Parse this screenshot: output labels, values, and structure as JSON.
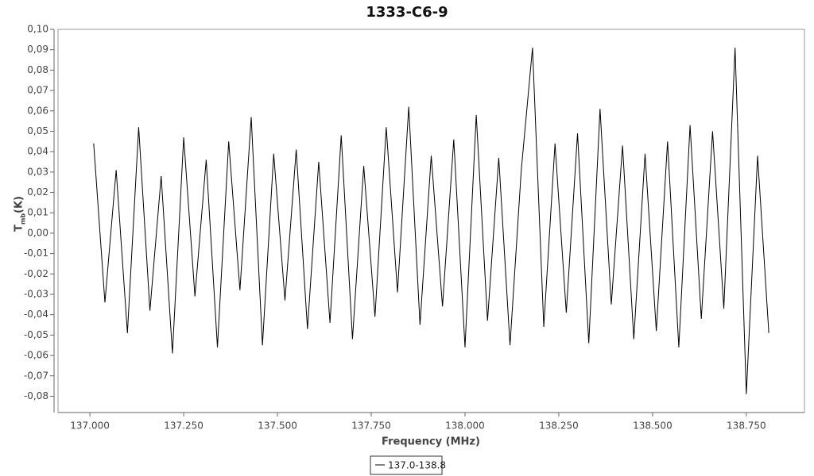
{
  "chart_data": {
    "type": "line",
    "title": "1333-C6-9",
    "x_label": "Frequency (MHz)",
    "y_label": [
      "T",
      "mb",
      "(K)"
    ],
    "x": [
      137.01,
      137.04,
      137.07,
      137.1,
      137.13,
      137.16,
      137.19,
      137.22,
      137.25,
      137.28,
      137.31,
      137.34,
      137.37,
      137.4,
      137.43,
      137.46,
      137.49,
      137.52,
      137.55,
      137.58,
      137.61,
      137.64,
      137.67,
      137.7,
      137.73,
      137.76,
      137.79,
      137.82,
      137.85,
      137.88,
      137.91,
      137.94,
      137.97,
      138.0,
      138.03,
      138.06,
      138.09,
      138.12,
      138.15,
      138.18,
      138.21,
      138.24,
      138.27,
      138.3,
      138.33,
      138.36,
      138.39,
      138.42,
      138.45,
      138.48,
      138.51,
      138.54,
      138.57,
      138.6,
      138.63,
      138.66,
      138.69,
      138.72,
      138.75,
      138.78,
      138.81
    ],
    "series": [
      {
        "name": "137.0-138.8",
        "color": "#000000",
        "values": [
          0.044,
          -0.034,
          0.031,
          -0.049,
          0.052,
          -0.038,
          0.028,
          -0.059,
          0.047,
          -0.031,
          0.036,
          -0.056,
          0.045,
          -0.028,
          0.057,
          -0.055,
          0.039,
          -0.033,
          0.041,
          -0.047,
          0.035,
          -0.044,
          0.048,
          -0.052,
          0.033,
          -0.041,
          0.052,
          -0.029,
          0.062,
          -0.045,
          0.038,
          -0.036,
          0.046,
          -0.056,
          0.058,
          -0.043,
          0.037,
          -0.055,
          0.031,
          0.091,
          -0.046,
          0.044,
          -0.039,
          0.049,
          -0.054,
          0.061,
          -0.035,
          0.043,
          -0.052,
          0.039,
          -0.048,
          0.045,
          -0.056,
          0.053,
          -0.042,
          0.05,
          -0.037,
          0.091,
          -0.079,
          0.038,
          -0.049
        ]
      }
    ],
    "xlim": [
      136.915,
      138.905
    ],
    "xticks": [
      {
        "value": 137,
        "label": "137.000"
      },
      {
        "value": 137.25,
        "label": "137.250"
      },
      {
        "value": 137.5,
        "label": "137.500"
      },
      {
        "value": 137.75,
        "label": "137.750"
      },
      {
        "value": 138,
        "label": "138.000"
      },
      {
        "value": 138.25,
        "label": "138.250"
      },
      {
        "value": 138.5,
        "label": "138.500"
      },
      {
        "value": 138.75,
        "label": "138.750"
      }
    ],
    "ylim": [
      -0.088,
      0.1
    ],
    "yticks": [
      {
        "value": 0.1,
        "label": "0,10"
      },
      {
        "value": 0.09,
        "label": "0,09"
      },
      {
        "value": 0.08,
        "label": "0,08"
      },
      {
        "value": 0.07,
        "label": "0,07"
      },
      {
        "value": 0.06,
        "label": "0,06"
      },
      {
        "value": 0.05,
        "label": "0,05"
      },
      {
        "value": 0.04,
        "label": "0,04"
      },
      {
        "value": 0.03,
        "label": "0,03"
      },
      {
        "value": 0.02,
        "label": "0,02"
      },
      {
        "value": 0.01,
        "label": "0,01"
      },
      {
        "value": 0,
        "label": "0,00"
      },
      {
        "value": -0.01,
        "label": "-0,01"
      },
      {
        "value": -0.02,
        "label": "-0,02"
      },
      {
        "value": -0.03,
        "label": "-0,03"
      },
      {
        "value": -0.04,
        "label": "-0,04"
      },
      {
        "value": -0.05,
        "label": "-0,05"
      },
      {
        "value": -0.06,
        "label": "-0,06"
      },
      {
        "value": -0.07,
        "label": "-0,07"
      },
      {
        "value": -0.08,
        "label": "-0,08"
      }
    ],
    "grid": false
  }
}
